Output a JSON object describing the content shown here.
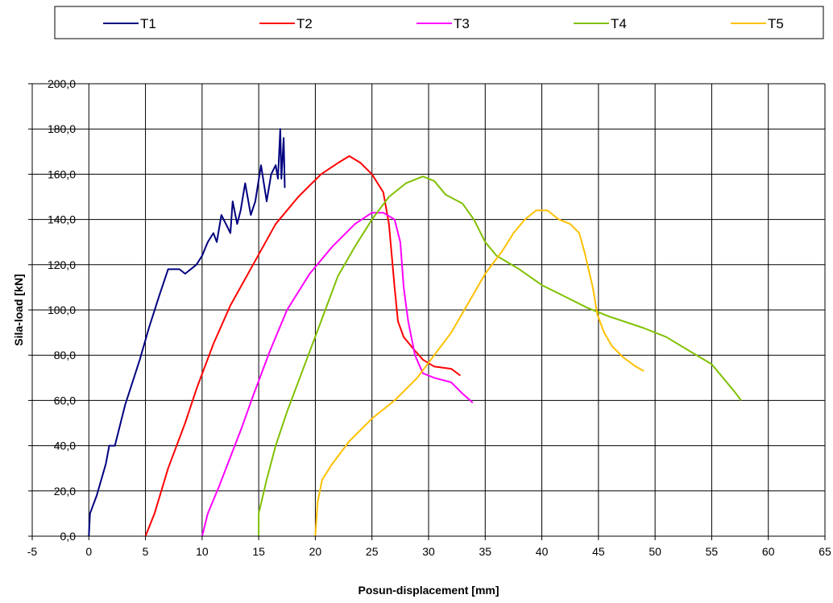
{
  "chart_data": {
    "type": "line",
    "title": "",
    "xlabel": "Posun-displacement [mm]",
    "ylabel": "Sila-load [kN]",
    "xlim": [
      -5,
      65
    ],
    "ylim": [
      0,
      200
    ],
    "x_ticks": [
      -5,
      0,
      5,
      10,
      15,
      20,
      25,
      30,
      35,
      40,
      45,
      50,
      55,
      60,
      65
    ],
    "x_tick_labels": [
      "-5",
      "0",
      "5",
      "10",
      "15",
      "20",
      "25",
      "30",
      "35",
      "40",
      "45",
      "50",
      "55",
      "60",
      "65"
    ],
    "y_ticks": [
      0,
      20,
      40,
      60,
      80,
      100,
      120,
      140,
      160,
      180,
      200
    ],
    "y_tick_labels": [
      "0,0",
      "20,0",
      "40,0",
      "60,0",
      "80,0",
      "100,0",
      "120,0",
      "140,0",
      "160,0",
      "180,0",
      "200,0"
    ],
    "grid": true,
    "legend_position": "top",
    "series": [
      {
        "name": "T1",
        "color": "#000080",
        "points": [
          [
            0,
            0
          ],
          [
            0.1,
            10
          ],
          [
            0.7,
            18
          ],
          [
            1.5,
            32
          ],
          [
            1.8,
            40
          ],
          [
            2.3,
            40
          ],
          [
            3.2,
            58
          ],
          [
            4.5,
            78
          ],
          [
            5.3,
            92
          ],
          [
            6.2,
            106
          ],
          [
            7,
            118
          ],
          [
            8,
            118
          ],
          [
            8.5,
            116
          ],
          [
            9.5,
            120
          ],
          [
            10,
            124
          ],
          [
            10.5,
            130
          ],
          [
            11,
            134
          ],
          [
            11.3,
            130
          ],
          [
            11.7,
            142
          ],
          [
            12.3,
            136
          ],
          [
            12.5,
            134
          ],
          [
            12.7,
            148
          ],
          [
            13.1,
            138
          ],
          [
            13.4,
            144
          ],
          [
            13.8,
            156
          ],
          [
            14.3,
            142
          ],
          [
            14.7,
            148
          ],
          [
            15.2,
            164
          ],
          [
            15.7,
            148
          ],
          [
            16.1,
            160
          ],
          [
            16.5,
            164
          ],
          [
            16.7,
            158
          ],
          [
            16.9,
            180
          ],
          [
            17.0,
            158
          ],
          [
            17.2,
            176
          ],
          [
            17.3,
            154
          ]
        ]
      },
      {
        "name": "T2",
        "color": "#ff0000",
        "points": [
          [
            5,
            0
          ],
          [
            5.8,
            10
          ],
          [
            7,
            30
          ],
          [
            8.5,
            50
          ],
          [
            9.5,
            65
          ],
          [
            11,
            85
          ],
          [
            12.5,
            102
          ],
          [
            14.5,
            120
          ],
          [
            16.5,
            138
          ],
          [
            18.5,
            150
          ],
          [
            20.5,
            160
          ],
          [
            22,
            165
          ],
          [
            23,
            168
          ],
          [
            24,
            165
          ],
          [
            25,
            160
          ],
          [
            26,
            152
          ],
          [
            26.5,
            138
          ],
          [
            27,
            110
          ],
          [
            27.3,
            95
          ],
          [
            27.8,
            88
          ],
          [
            28.8,
            82
          ],
          [
            29.5,
            78
          ],
          [
            30.5,
            75
          ],
          [
            32,
            74
          ],
          [
            32.8,
            71
          ]
        ]
      },
      {
        "name": "T3",
        "color": "#ff00ff",
        "points": [
          [
            10,
            0
          ],
          [
            10.5,
            10
          ],
          [
            11.5,
            22
          ],
          [
            12.5,
            35
          ],
          [
            13.5,
            48
          ],
          [
            14.5,
            62
          ],
          [
            16,
            82
          ],
          [
            17.5,
            100
          ],
          [
            19.5,
            116
          ],
          [
            21.5,
            128
          ],
          [
            23.5,
            138
          ],
          [
            25,
            143
          ],
          [
            26,
            143
          ],
          [
            27,
            140
          ],
          [
            27.5,
            130
          ],
          [
            27.8,
            110
          ],
          [
            28.2,
            95
          ],
          [
            28.8,
            80
          ],
          [
            29.5,
            72
          ],
          [
            30.5,
            70
          ],
          [
            32,
            68
          ],
          [
            33,
            63
          ],
          [
            33.9,
            59
          ]
        ]
      },
      {
        "name": "T4",
        "color": "#80c000",
        "points": [
          [
            15,
            0
          ],
          [
            15,
            10
          ],
          [
            15.7,
            25
          ],
          [
            16.5,
            40
          ],
          [
            17.5,
            55
          ],
          [
            19,
            75
          ],
          [
            20.5,
            95
          ],
          [
            22,
            115
          ],
          [
            23.5,
            128
          ],
          [
            25,
            140
          ],
          [
            26.5,
            150
          ],
          [
            28,
            156
          ],
          [
            29.5,
            159
          ],
          [
            30.5,
            157
          ],
          [
            31.5,
            151
          ],
          [
            33,
            147
          ],
          [
            34,
            140
          ],
          [
            35,
            130
          ],
          [
            36,
            124
          ],
          [
            38,
            118
          ],
          [
            40,
            111
          ],
          [
            42,
            106
          ],
          [
            44,
            101
          ],
          [
            46,
            97
          ],
          [
            49,
            92
          ],
          [
            51,
            88
          ],
          [
            53,
            82
          ],
          [
            55,
            76
          ],
          [
            56,
            70
          ],
          [
            57,
            64
          ],
          [
            57.6,
            60
          ]
        ]
      },
      {
        "name": "T5",
        "color": "#ffc000",
        "points": [
          [
            20,
            0
          ],
          [
            20.2,
            15
          ],
          [
            20.6,
            25
          ],
          [
            21.5,
            32
          ],
          [
            23,
            42
          ],
          [
            25,
            52
          ],
          [
            27,
            60
          ],
          [
            29,
            70
          ],
          [
            30.5,
            80
          ],
          [
            32,
            90
          ],
          [
            33.5,
            103
          ],
          [
            35,
            116
          ],
          [
            36.5,
            126
          ],
          [
            37.5,
            134
          ],
          [
            38.5,
            140
          ],
          [
            39.5,
            144
          ],
          [
            40.5,
            144
          ],
          [
            41.5,
            140
          ],
          [
            42.5,
            138
          ],
          [
            43.3,
            134
          ],
          [
            43.8,
            125
          ],
          [
            44.5,
            110
          ],
          [
            44.9,
            98
          ],
          [
            45.5,
            90
          ],
          [
            46.2,
            84
          ],
          [
            47.2,
            79
          ],
          [
            48.3,
            75
          ],
          [
            49,
            73
          ]
        ]
      }
    ]
  }
}
